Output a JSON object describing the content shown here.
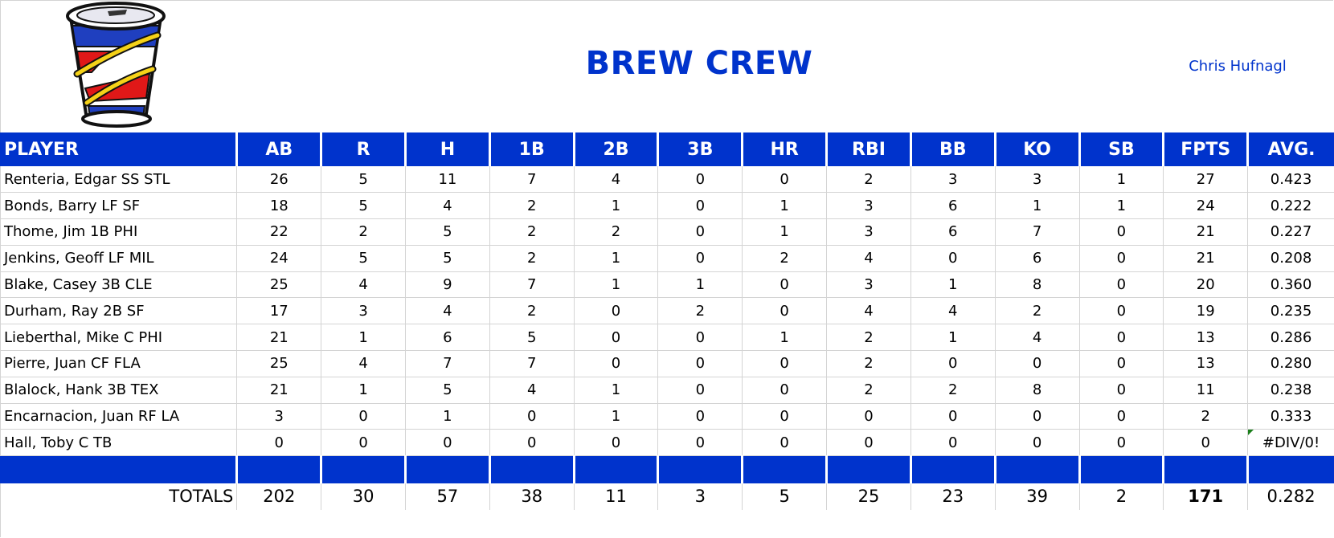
{
  "header": {
    "title": "BREW CREW",
    "owner": "Chris Hufnagl",
    "logo_icon": "soda-cup-icon"
  },
  "colors": {
    "accent_blue": "#0033cc",
    "grid_gray": "#d4d4d4",
    "error_flag_green": "#1a7f1a"
  },
  "table": {
    "columns": [
      "PLAYER",
      "AB",
      "R",
      "H",
      "1B",
      "2B",
      "3B",
      "HR",
      "RBI",
      "BB",
      "KO",
      "SB",
      "FPTS",
      "AVG."
    ],
    "rows": [
      [
        "Renteria, Edgar SS STL",
        "26",
        "5",
        "11",
        "7",
        "4",
        "0",
        "0",
        "2",
        "3",
        "3",
        "1",
        "27",
        "0.423"
      ],
      [
        "Bonds, Barry LF SF",
        "18",
        "5",
        "4",
        "2",
        "1",
        "0",
        "1",
        "3",
        "6",
        "1",
        "1",
        "24",
        "0.222"
      ],
      [
        "Thome, Jim 1B PHI",
        "22",
        "2",
        "5",
        "2",
        "2",
        "0",
        "1",
        "3",
        "6",
        "7",
        "0",
        "21",
        "0.227"
      ],
      [
        "Jenkins, Geoff LF MIL",
        "24",
        "5",
        "5",
        "2",
        "1",
        "0",
        "2",
        "4",
        "0",
        "6",
        "0",
        "21",
        "0.208"
      ],
      [
        "Blake, Casey 3B CLE",
        "25",
        "4",
        "9",
        "7",
        "1",
        "1",
        "0",
        "3",
        "1",
        "8",
        "0",
        "20",
        "0.360"
      ],
      [
        "Durham, Ray 2B SF",
        "17",
        "3",
        "4",
        "2",
        "0",
        "2",
        "0",
        "4",
        "4",
        "2",
        "0",
        "19",
        "0.235"
      ],
      [
        "Lieberthal, Mike C PHI",
        "21",
        "1",
        "6",
        "5",
        "0",
        "0",
        "1",
        "2",
        "1",
        "4",
        "0",
        "13",
        "0.286"
      ],
      [
        "Pierre, Juan CF FLA",
        "25",
        "4",
        "7",
        "7",
        "0",
        "0",
        "0",
        "2",
        "0",
        "0",
        "0",
        "13",
        "0.280"
      ],
      [
        "Blalock, Hank 3B TEX",
        "21",
        "1",
        "5",
        "4",
        "1",
        "0",
        "0",
        "2",
        "2",
        "8",
        "0",
        "11",
        "0.238"
      ],
      [
        "Encarnacion, Juan RF LA",
        "3",
        "0",
        "1",
        "0",
        "1",
        "0",
        "0",
        "0",
        "0",
        "0",
        "0",
        "2",
        "0.333"
      ],
      [
        "Hall, Toby C TB",
        "0",
        "0",
        "0",
        "0",
        "0",
        "0",
        "0",
        "0",
        "0",
        "0",
        "0",
        "0",
        "#DIV/0!"
      ]
    ],
    "totals": [
      "TOTALS",
      "202",
      "30",
      "57",
      "38",
      "11",
      "3",
      "5",
      "25",
      "23",
      "39",
      "2",
      "171",
      "0.282"
    ]
  }
}
